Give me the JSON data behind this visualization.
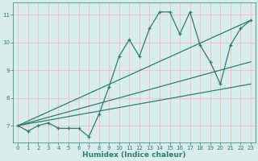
{
  "xlabel": "Humidex (Indice chaleur)",
  "ylabel": "",
  "bg_color": "#d8eeed",
  "grid_color": "#f5bebe",
  "line_color": "#2e7d6e",
  "xlim": [
    -0.5,
    23.5
  ],
  "ylim": [
    6.4,
    11.45
  ],
  "xticks": [
    0,
    1,
    2,
    3,
    4,
    5,
    6,
    7,
    8,
    9,
    10,
    11,
    12,
    13,
    14,
    15,
    16,
    17,
    18,
    19,
    20,
    21,
    22,
    23
  ],
  "yticks": [
    7,
    8,
    9,
    10,
    11
  ],
  "line1_x": [
    0,
    1,
    2,
    3,
    4,
    5,
    6,
    7,
    8,
    9,
    10,
    11,
    12,
    13,
    14,
    15,
    16,
    17,
    18,
    19,
    20,
    21,
    22,
    23
  ],
  "line1_y": [
    7.0,
    6.8,
    7.0,
    7.1,
    6.9,
    6.9,
    6.9,
    6.6,
    7.4,
    8.4,
    9.5,
    10.1,
    9.5,
    10.5,
    11.1,
    11.1,
    10.3,
    11.1,
    9.9,
    9.3,
    8.5,
    9.9,
    10.5,
    10.8
  ],
  "line2_x": [
    0,
    23
  ],
  "line2_y": [
    7.0,
    10.8
  ],
  "line3_x": [
    0,
    23
  ],
  "line3_y": [
    7.0,
    9.3
  ],
  "line4_x": [
    0,
    23
  ],
  "line4_y": [
    7.0,
    8.5
  ]
}
